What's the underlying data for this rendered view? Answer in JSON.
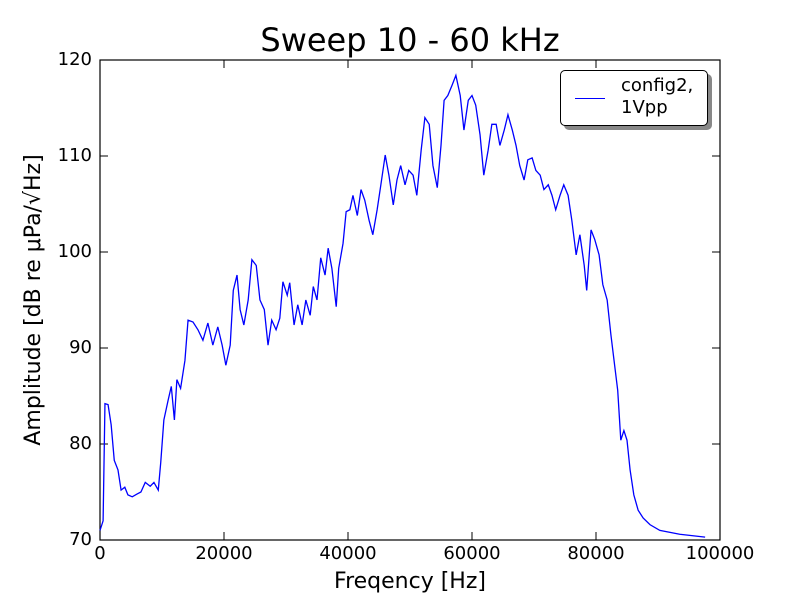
{
  "chart_data": {
    "type": "line",
    "title": "Sweep 10 - 60 kHz",
    "xlabel": "Freqency [Hz]",
    "ylabel": "Amplitude [dB re μPa/√Hz]",
    "xlim": [
      0,
      100000
    ],
    "ylim": [
      70,
      120
    ],
    "xticks": [
      0,
      20000,
      40000,
      60000,
      80000,
      100000
    ],
    "yticks": [
      70,
      80,
      90,
      100,
      110,
      120
    ],
    "legend": "upper right",
    "x": [
      0,
      500,
      800,
      1300,
      1800,
      2300,
      2900,
      3400,
      4000,
      4500,
      5200,
      6000,
      6600,
      7300,
      8100,
      8700,
      9400,
      9800,
      10300,
      11000,
      11500,
      12000,
      12400,
      13000,
      13700,
      14200,
      15000,
      15800,
      16600,
      17400,
      18200,
      19000,
      19700,
      20300,
      21000,
      21500,
      22100,
      22600,
      23200,
      23900,
      24500,
      25200,
      25800,
      26500,
      27100,
      27700,
      28400,
      29000,
      29500,
      30200,
      30600,
      31300,
      31900,
      32600,
      33200,
      33900,
      34400,
      35000,
      35600,
      36300,
      36800,
      37400,
      38100,
      38500,
      39200,
      39700,
      40300,
      40800,
      41500,
      42100,
      42700,
      43400,
      44000,
      44700,
      45300,
      46000,
      46600,
      47300,
      47900,
      48500,
      49200,
      49800,
      50500,
      51100,
      51800,
      52400,
      53100,
      53700,
      54400,
      55000,
      55500,
      56100,
      56800,
      57400,
      58100,
      58700,
      59400,
      60000,
      60600,
      61300,
      61900,
      62600,
      63200,
      63900,
      64500,
      65200,
      65800,
      66500,
      67100,
      67700,
      68400,
      69000,
      69700,
      70300,
      71000,
      71600,
      72300,
      72900,
      73500,
      74200,
      74800,
      75500,
      76100,
      76800,
      77400,
      78100,
      78500,
      79200,
      79800,
      80500,
      81100,
      81800,
      82400,
      83100,
      83500,
      84000,
      84500,
      85000,
      85500,
      86100,
      86800,
      87600,
      88700,
      90300,
      93500,
      97600
    ],
    "series": [
      {
        "name": "config2, 1Vpp",
        "color": "#0000ff",
        "values": [
          71.0,
          72,
          84.2,
          84.1,
          82,
          78.3,
          77.3,
          75.2,
          75.5,
          74.7,
          74.5,
          74.8,
          75.0,
          76.0,
          75.6,
          76.0,
          75.2,
          78.1,
          82.5,
          84.6,
          86,
          82.5,
          86.7,
          85.8,
          88.7,
          92.9,
          92.7,
          91.9,
          90.8,
          92.6,
          90.3,
          92.2,
          90.3,
          88.2,
          90.3,
          96.0,
          97.6,
          94,
          92.4,
          95,
          99.2,
          98.6,
          95,
          94,
          90.3,
          92.9,
          91.9,
          93.1,
          96.9,
          95.5,
          96.8,
          92.4,
          94.5,
          92.4,
          95,
          93.4,
          96.4,
          95,
          99.4,
          97.6,
          100.4,
          98.3,
          94.3,
          98.3,
          100.9,
          104.2,
          104.4,
          105.9,
          103.8,
          106.5,
          105.4,
          103.3,
          101.8,
          104.4,
          107,
          110.1,
          108,
          104.9,
          107.5,
          109,
          107,
          108.5,
          108,
          105.9,
          110.6,
          114,
          113.3,
          109,
          106.7,
          111.1,
          115.8,
          116.3,
          117.4,
          118.4,
          116.3,
          112.7,
          115.8,
          116.3,
          115.3,
          112.2,
          108,
          110.6,
          113.3,
          113.3,
          111.1,
          112.7,
          114.3,
          112.7,
          111.1,
          109,
          107.5,
          109.6,
          109.8,
          108.5,
          108,
          106.5,
          107,
          105.9,
          104.4,
          105.9,
          107,
          105.9,
          103.3,
          99.7,
          101.8,
          98.6,
          96,
          102.3,
          101.3,
          99.7,
          96.6,
          95,
          91.4,
          87.7,
          85.6,
          80.4,
          81.4,
          80.4,
          77.3,
          74.7,
          73.1,
          72.3,
          71.6,
          71.0,
          70.6,
          70.3
        ]
      }
    ]
  }
}
